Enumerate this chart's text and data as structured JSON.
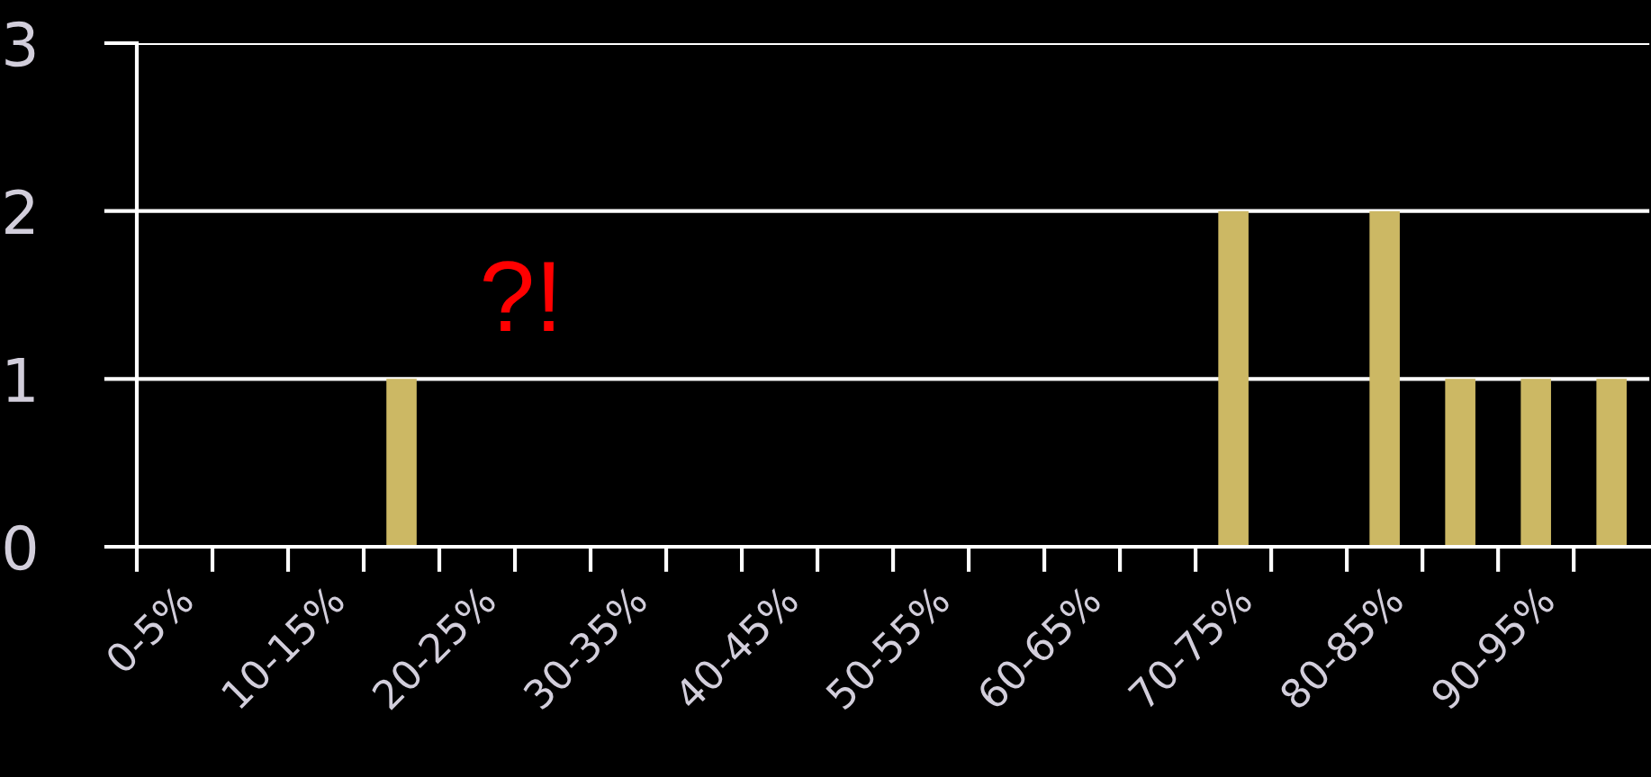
{
  "chart_data": {
    "type": "bar",
    "categories": [
      "0-5%",
      null,
      "10-15%",
      null,
      "20-25%",
      null,
      "30-35%",
      null,
      "40-45%",
      null,
      "50-55%",
      null,
      "60-65%",
      null,
      "70-75%",
      null,
      "80-85%",
      null,
      "90-95%",
      null
    ],
    "values": [
      0,
      0,
      0,
      1,
      0,
      0,
      0,
      0,
      0,
      0,
      0,
      0,
      0,
      0,
      2,
      0,
      2,
      1,
      1,
      1
    ],
    "color": "#ccb864",
    "ylim": [
      0,
      3
    ],
    "yticks": [
      0,
      1,
      2,
      3
    ],
    "grid": "y",
    "annotations": [
      "?!"
    ]
  }
}
